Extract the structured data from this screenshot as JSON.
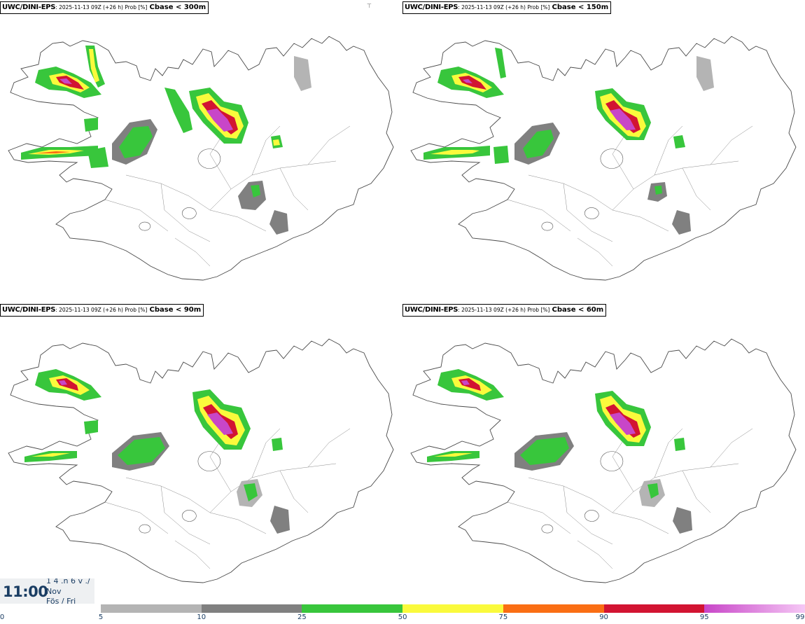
{
  "panels": [
    {
      "source": "UWC/DINI-EPS",
      "meta": ": 2025-11-13 09Z (+26 h) Prob [%]",
      "variable": "Cbase < 300m"
    },
    {
      "source": "UWC/DINI-EPS",
      "meta": ": 2025-11-13 09Z (+26 h) Prob [%]",
      "variable": "Cbase < 150m"
    },
    {
      "source": "UWC/DINI-EPS",
      "meta": ": 2025-11-13 09Z (+26 h) Prob [%]",
      "variable": "Cbase < 90m"
    },
    {
      "source": "UWC/DINI-EPS",
      "meta": ": 2025-11-13 09Z (+26 h) Prob [%]",
      "variable": "Cbase < 60m"
    }
  ],
  "time": {
    "clock": "11:00",
    "day_fraction": "1 4 .n 6 v ./",
    "month": "Nov",
    "weekday": "Fös / Fri"
  },
  "legend": {
    "ticks": [
      "0",
      "5",
      "10",
      "25",
      "50",
      "75",
      "90",
      "95",
      "99"
    ],
    "bins": [
      {
        "from": "5",
        "to": "10",
        "color": "#b4b4b4"
      },
      {
        "from": "10",
        "to": "25",
        "color": "#808080"
      },
      {
        "from": "25",
        "to": "50",
        "color": "#38c63c"
      },
      {
        "from": "50",
        "to": "75",
        "color": "#fafa3c"
      },
      {
        "from": "75",
        "to": "90",
        "color": "#fa6e14"
      },
      {
        "from": "90",
        "to": "95",
        "color": "#d21432"
      },
      {
        "from": "95",
        "to": "99",
        "color": "#c846c8",
        "gradient_to": "#f5c8f5"
      }
    ]
  },
  "icons": {
    "north_marker": "north-arrow-icon"
  }
}
